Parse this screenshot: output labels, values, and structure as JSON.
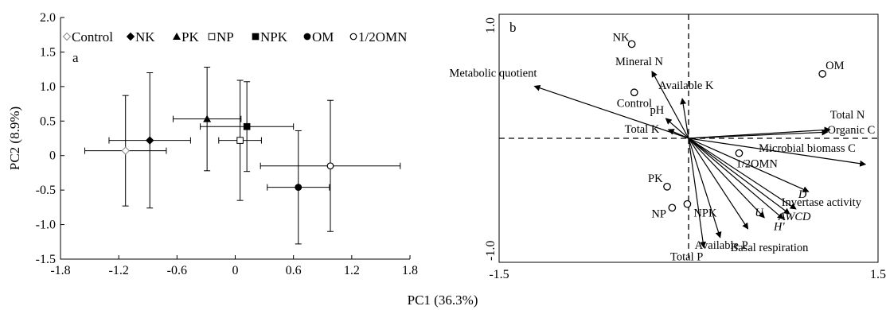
{
  "chart_data": [
    {
      "panel_label": "a",
      "type": "scatter",
      "xlabel": "PC1 (36.3%)",
      "ylabel": "PC2 (8.9%)",
      "xlim": [
        -1.8,
        1.8
      ],
      "ylim": [
        -1.5,
        2.0
      ],
      "xticks": [
        "-1.8",
        "-1.2",
        "-0.6",
        "0",
        "0.6",
        "1.2",
        "1.8"
      ],
      "yticks": [
        "-1.5",
        "-1.0",
        "-0.5",
        "0",
        "0.5",
        "1.0",
        "1.5",
        "2.0"
      ],
      "legend_placement": "top",
      "series": [
        {
          "name": "Control",
          "marker": "open-diamond",
          "x": -1.13,
          "y": 0.07,
          "x_err": 0.42,
          "y_err": 0.8
        },
        {
          "name": "NK",
          "marker": "filled-diamond",
          "x": -0.88,
          "y": 0.22,
          "x_err": 0.42,
          "y_err": 0.98
        },
        {
          "name": "PK",
          "marker": "filled-triangle",
          "x": -0.29,
          "y": 0.53,
          "x_err": 0.35,
          "y_err": 0.75
        },
        {
          "name": "NP",
          "marker": "open-square",
          "x": 0.05,
          "y": 0.22,
          "x_err": 0.22,
          "y_err": 0.87
        },
        {
          "name": "NPK",
          "marker": "filled-square",
          "x": 0.12,
          "y": 0.42,
          "x_err": 0.48,
          "y_err": 0.65
        },
        {
          "name": "OM",
          "marker": "filled-circle",
          "x": 0.65,
          "y": -0.46,
          "x_err": 0.32,
          "y_err": 0.82
        },
        {
          "name": "1/2OMN",
          "marker": "open-circle",
          "x": 0.98,
          "y": -0.15,
          "x_err": 0.72,
          "y_err": 0.95
        }
      ]
    },
    {
      "panel_label": "b",
      "type": "scatter",
      "subtype": "biplot",
      "xlim": [
        -1.5,
        1.5
      ],
      "ylim": [
        -1.0,
        1.0
      ],
      "xticks": [
        "-1.5",
        "1.5"
      ],
      "yticks": [
        "1.0",
        "-1.0"
      ],
      "points": [
        {
          "label": "NK",
          "x": -0.45,
          "y": 0.76
        },
        {
          "label": "OM",
          "x": 1.06,
          "y": 0.52
        },
        {
          "label": "Control",
          "x": -0.43,
          "y": 0.37
        },
        {
          "label": "1/2OMN",
          "x": 0.4,
          "y": -0.12
        },
        {
          "label": "PK",
          "x": -0.17,
          "y": -0.39
        },
        {
          "label": "NP",
          "x": -0.13,
          "y": -0.56
        },
        {
          "label": "NPK",
          "x": -0.01,
          "y": -0.53
        }
      ],
      "vectors": [
        {
          "label": "Metabolic quotient",
          "x": -1.22,
          "y": 0.42
        },
        {
          "label": "Mineral N",
          "x": -0.29,
          "y": 0.54
        },
        {
          "label": "Available K",
          "x": -0.05,
          "y": 0.32
        },
        {
          "label": "pH",
          "x": -0.18,
          "y": 0.16
        },
        {
          "label": "Total K",
          "x": -0.16,
          "y": 0.07
        },
        {
          "label": "Total N",
          "x": 1.12,
          "y": 0.07
        },
        {
          "label": "Organic C",
          "x": 1.1,
          "y": 0.05
        },
        {
          "label": "Microbial biomass C",
          "x": 1.4,
          "y": -0.21
        },
        {
          "label": "Invertase activity",
          "x": 0.95,
          "y": -0.43
        },
        {
          "label": "D",
          "x": 0.85,
          "y": -0.57,
          "italic": true
        },
        {
          "label": "AWCD",
          "x": 0.8,
          "y": -0.61,
          "italic": true
        },
        {
          "label": "H'",
          "x": 0.75,
          "y": -0.65,
          "italic": true
        },
        {
          "label": "U",
          "x": 0.6,
          "y": -0.64,
          "italic": true
        },
        {
          "label": "Basal respiration",
          "x": 0.47,
          "y": -0.73
        },
        {
          "label": "Available P",
          "x": 0.25,
          "y": -0.8
        },
        {
          "label": "Total P",
          "x": 0.12,
          "y": -0.88
        }
      ]
    }
  ]
}
